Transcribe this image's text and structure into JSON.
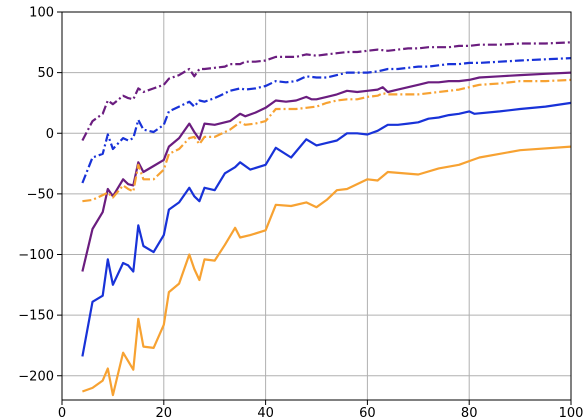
{
  "chart_data": {
    "type": "line",
    "title": "",
    "xlabel": "",
    "ylabel": "",
    "xlim": [
      0,
      100
    ],
    "ylim": [
      -220,
      100
    ],
    "grid": true,
    "legend": "none",
    "x_ticks": [
      {
        "value": 0,
        "label": "0"
      },
      {
        "value": 20,
        "label": "20"
      },
      {
        "value": 40,
        "label": "40"
      },
      {
        "value": 60,
        "label": "60"
      },
      {
        "value": 80,
        "label": "80"
      },
      {
        "value": 100,
        "label": "100"
      }
    ],
    "y_ticks": [
      {
        "value": 100,
        "label": "100"
      },
      {
        "value": 50,
        "label": "50"
      },
      {
        "value": 0,
        "label": "0"
      },
      {
        "value": -50,
        "label": "−50"
      },
      {
        "value": -100,
        "label": "−100"
      },
      {
        "value": -150,
        "label": "−150"
      },
      {
        "value": -200,
        "label": "−200"
      }
    ],
    "series": [
      {
        "color": "#6b1d7f",
        "dash": "dashdot",
        "x": [
          4,
          6,
          8,
          9,
          10,
          12,
          13,
          14,
          15,
          16,
          18,
          20,
          21,
          23,
          25,
          26,
          27,
          28,
          30,
          32,
          33,
          35,
          36,
          38,
          40,
          42,
          44,
          46,
          48,
          50,
          52,
          54,
          56,
          58,
          60,
          62,
          64,
          66,
          68,
          70,
          72,
          74,
          76,
          78,
          80,
          82,
          86,
          90,
          95,
          100
        ],
        "y": [
          -6,
          10,
          16,
          27,
          24,
          31,
          29,
          28,
          37,
          34,
          37,
          40,
          45,
          48,
          53,
          47,
          53,
          53,
          54,
          55,
          57,
          57,
          59,
          59,
          60,
          63,
          63,
          63,
          65,
          64,
          65,
          66,
          67,
          67,
          68,
          69,
          68,
          69,
          70,
          70,
          71,
          71,
          71,
          72,
          72,
          73,
          73,
          74,
          74,
          75
        ]
      },
      {
        "color": "#1832d8",
        "dash": "dashdot",
        "x": [
          4,
          6,
          8,
          9,
          10,
          12,
          13,
          14,
          15,
          16,
          18,
          20,
          21,
          23,
          25,
          26,
          27,
          28,
          30,
          31,
          33,
          35,
          36,
          38,
          40,
          42,
          44,
          46,
          48,
          50,
          52,
          54,
          56,
          58,
          60,
          62,
          64,
          66,
          68,
          70,
          72,
          74,
          76,
          78,
          80,
          82,
          86,
          90,
          95,
          100
        ],
        "y": [
          -41,
          -20,
          -17,
          -1,
          -13,
          -4,
          -6,
          -4,
          11,
          3,
          1,
          7,
          18,
          22,
          26,
          22,
          27,
          26,
          29,
          31,
          35,
          37,
          36,
          37,
          39,
          43,
          42,
          43,
          47,
          46,
          46,
          48,
          50,
          50,
          50,
          51,
          53,
          53,
          54,
          55,
          55,
          56,
          57,
          57,
          58,
          58,
          59,
          60,
          61,
          62
        ]
      },
      {
        "color": "#6b1d7f",
        "dash": "solid",
        "x": [
          4,
          6,
          8,
          9,
          10,
          12,
          13,
          14,
          15,
          16,
          18,
          20,
          21,
          23,
          25,
          26,
          27,
          28,
          30,
          31,
          33,
          35,
          36,
          38,
          40,
          42,
          44,
          46,
          48,
          49,
          50,
          52,
          54,
          56,
          58,
          60,
          62,
          63,
          64,
          66,
          68,
          70,
          72,
          74,
          76,
          78,
          80,
          82,
          86,
          90,
          95,
          100
        ],
        "y": [
          -114,
          -79,
          -65,
          -46,
          -52,
          -38,
          -42,
          -43,
          -24,
          -32,
          -27,
          -22,
          -11,
          -4,
          8,
          1,
          -5,
          8,
          7,
          8,
          10,
          16,
          14,
          17,
          21,
          27,
          26,
          27,
          30,
          28,
          28,
          30,
          32,
          35,
          34,
          35,
          36,
          38,
          34,
          36,
          38,
          40,
          42,
          42,
          43,
          43,
          44,
          46,
          47,
          48,
          49,
          50
        ]
      },
      {
        "color": "#f7a232",
        "dash": "dashdot",
        "x": [
          4,
          6,
          8,
          9,
          10,
          12,
          13,
          14,
          15,
          16,
          18,
          20,
          21,
          23,
          25,
          26,
          27,
          28,
          30,
          32,
          33,
          35,
          36,
          38,
          40,
          42,
          44,
          46,
          48,
          50,
          52,
          54,
          56,
          58,
          60,
          62,
          63,
          64,
          66,
          68,
          70,
          72,
          74,
          76,
          78,
          80,
          82,
          86,
          90,
          95,
          100
        ],
        "y": [
          -56,
          -55,
          -51,
          -49,
          -53,
          -43,
          -46,
          -48,
          -26,
          -38,
          -38,
          -30,
          -17,
          -13,
          -4,
          -3,
          -9,
          -3,
          -3,
          1,
          3,
          9,
          7,
          8,
          10,
          20,
          20,
          20,
          21,
          22,
          25,
          27,
          28,
          28,
          30,
          31,
          33,
          32,
          32,
          32,
          32,
          33,
          34,
          35,
          36,
          38,
          40,
          41,
          43,
          43,
          44
        ]
      },
      {
        "color": "#1832d8",
        "dash": "solid",
        "x": [
          4,
          6,
          8,
          9,
          10,
          12,
          13,
          14,
          15,
          16,
          18,
          20,
          21,
          23,
          25,
          26,
          27,
          28,
          30,
          32,
          34,
          35,
          37,
          40,
          42,
          45,
          48,
          50,
          52,
          54,
          56,
          58,
          60,
          62,
          64,
          66,
          68,
          70,
          72,
          74,
          76,
          78,
          80,
          81,
          86,
          90,
          95,
          100
        ],
        "y": [
          -184,
          -139,
          -134,
          -104,
          -125,
          -107,
          -109,
          -114,
          -76,
          -93,
          -98,
          -84,
          -63,
          -57,
          -45,
          -52,
          -56,
          -45,
          -47,
          -33,
          -28,
          -24,
          -30,
          -26,
          -12,
          -20,
          -5,
          -10,
          -8,
          -6,
          0,
          0,
          -1,
          2,
          7,
          7,
          8,
          9,
          12,
          13,
          15,
          16,
          18,
          16,
          18,
          20,
          22,
          25
        ]
      },
      {
        "color": "#f7a232",
        "dash": "solid",
        "x": [
          4,
          6,
          8,
          9,
          10,
          12,
          13,
          14,
          15,
          16,
          18,
          20,
          21,
          23,
          25,
          26,
          27,
          28,
          30,
          32,
          34,
          35,
          37,
          40,
          42,
          45,
          48,
          50,
          52,
          54,
          56,
          60,
          62,
          64,
          70,
          74,
          78,
          80,
          82,
          90,
          100
        ],
        "y": [
          -213,
          -210,
          -204,
          -194,
          -216,
          -181,
          -188,
          -195,
          -153,
          -176,
          -177,
          -158,
          -131,
          -124,
          -100,
          -112,
          -121,
          -104,
          -105,
          -92,
          -78,
          -86,
          -84,
          -80,
          -59,
          -60,
          -57,
          -61,
          -55,
          -47,
          -46,
          -38,
          -39,
          -32,
          -34,
          -29,
          -26,
          -23,
          -20,
          -14,
          -11
        ]
      }
    ]
  }
}
